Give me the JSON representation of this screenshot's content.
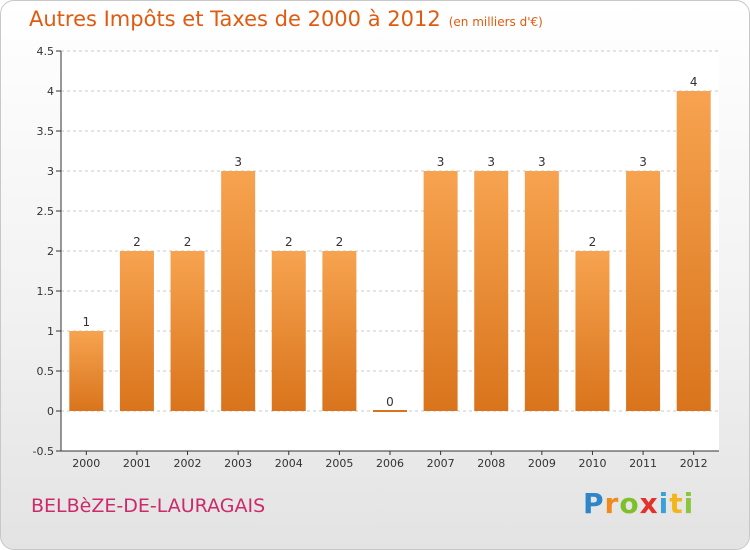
{
  "header": {
    "title": "Autres Impôts et Taxes de 2000 à 2012",
    "subtitle": "(en milliers d'€)"
  },
  "footer": {
    "commune": "BELBèZE-DE-LAURAGAIS",
    "brand": "Proxiti"
  },
  "colors": {
    "title": "#e05b10",
    "commune": "#cc2a6a",
    "bar_top": "#f7a350",
    "bar_bottom": "#d9741c",
    "axis": "#333333",
    "grid": "#c8c8c8"
  },
  "chart_data": {
    "type": "bar",
    "title": "Autres Impôts et Taxes de 2000 à 2012",
    "subtitle": "(en milliers d'€)",
    "categories": [
      "2000",
      "2001",
      "2002",
      "2003",
      "2004",
      "2005",
      "2006",
      "2007",
      "2008",
      "2009",
      "2010",
      "2011",
      "2012"
    ],
    "values": [
      1,
      2,
      2,
      3,
      2,
      2,
      0,
      3,
      3,
      3,
      2,
      3,
      4
    ],
    "data_labels": [
      "1",
      "2",
      "2",
      "3",
      "2",
      "2",
      "0",
      "3",
      "3",
      "3",
      "2",
      "3",
      "4"
    ],
    "yticks": [
      "-0.5",
      "0",
      "0.5",
      "1",
      "1.5",
      "2",
      "2.5",
      "3",
      "3.5",
      "4",
      "4.5"
    ],
    "ylim": [
      -0.5,
      4.5
    ],
    "grid": "horizontal dashed",
    "legend": "none"
  }
}
